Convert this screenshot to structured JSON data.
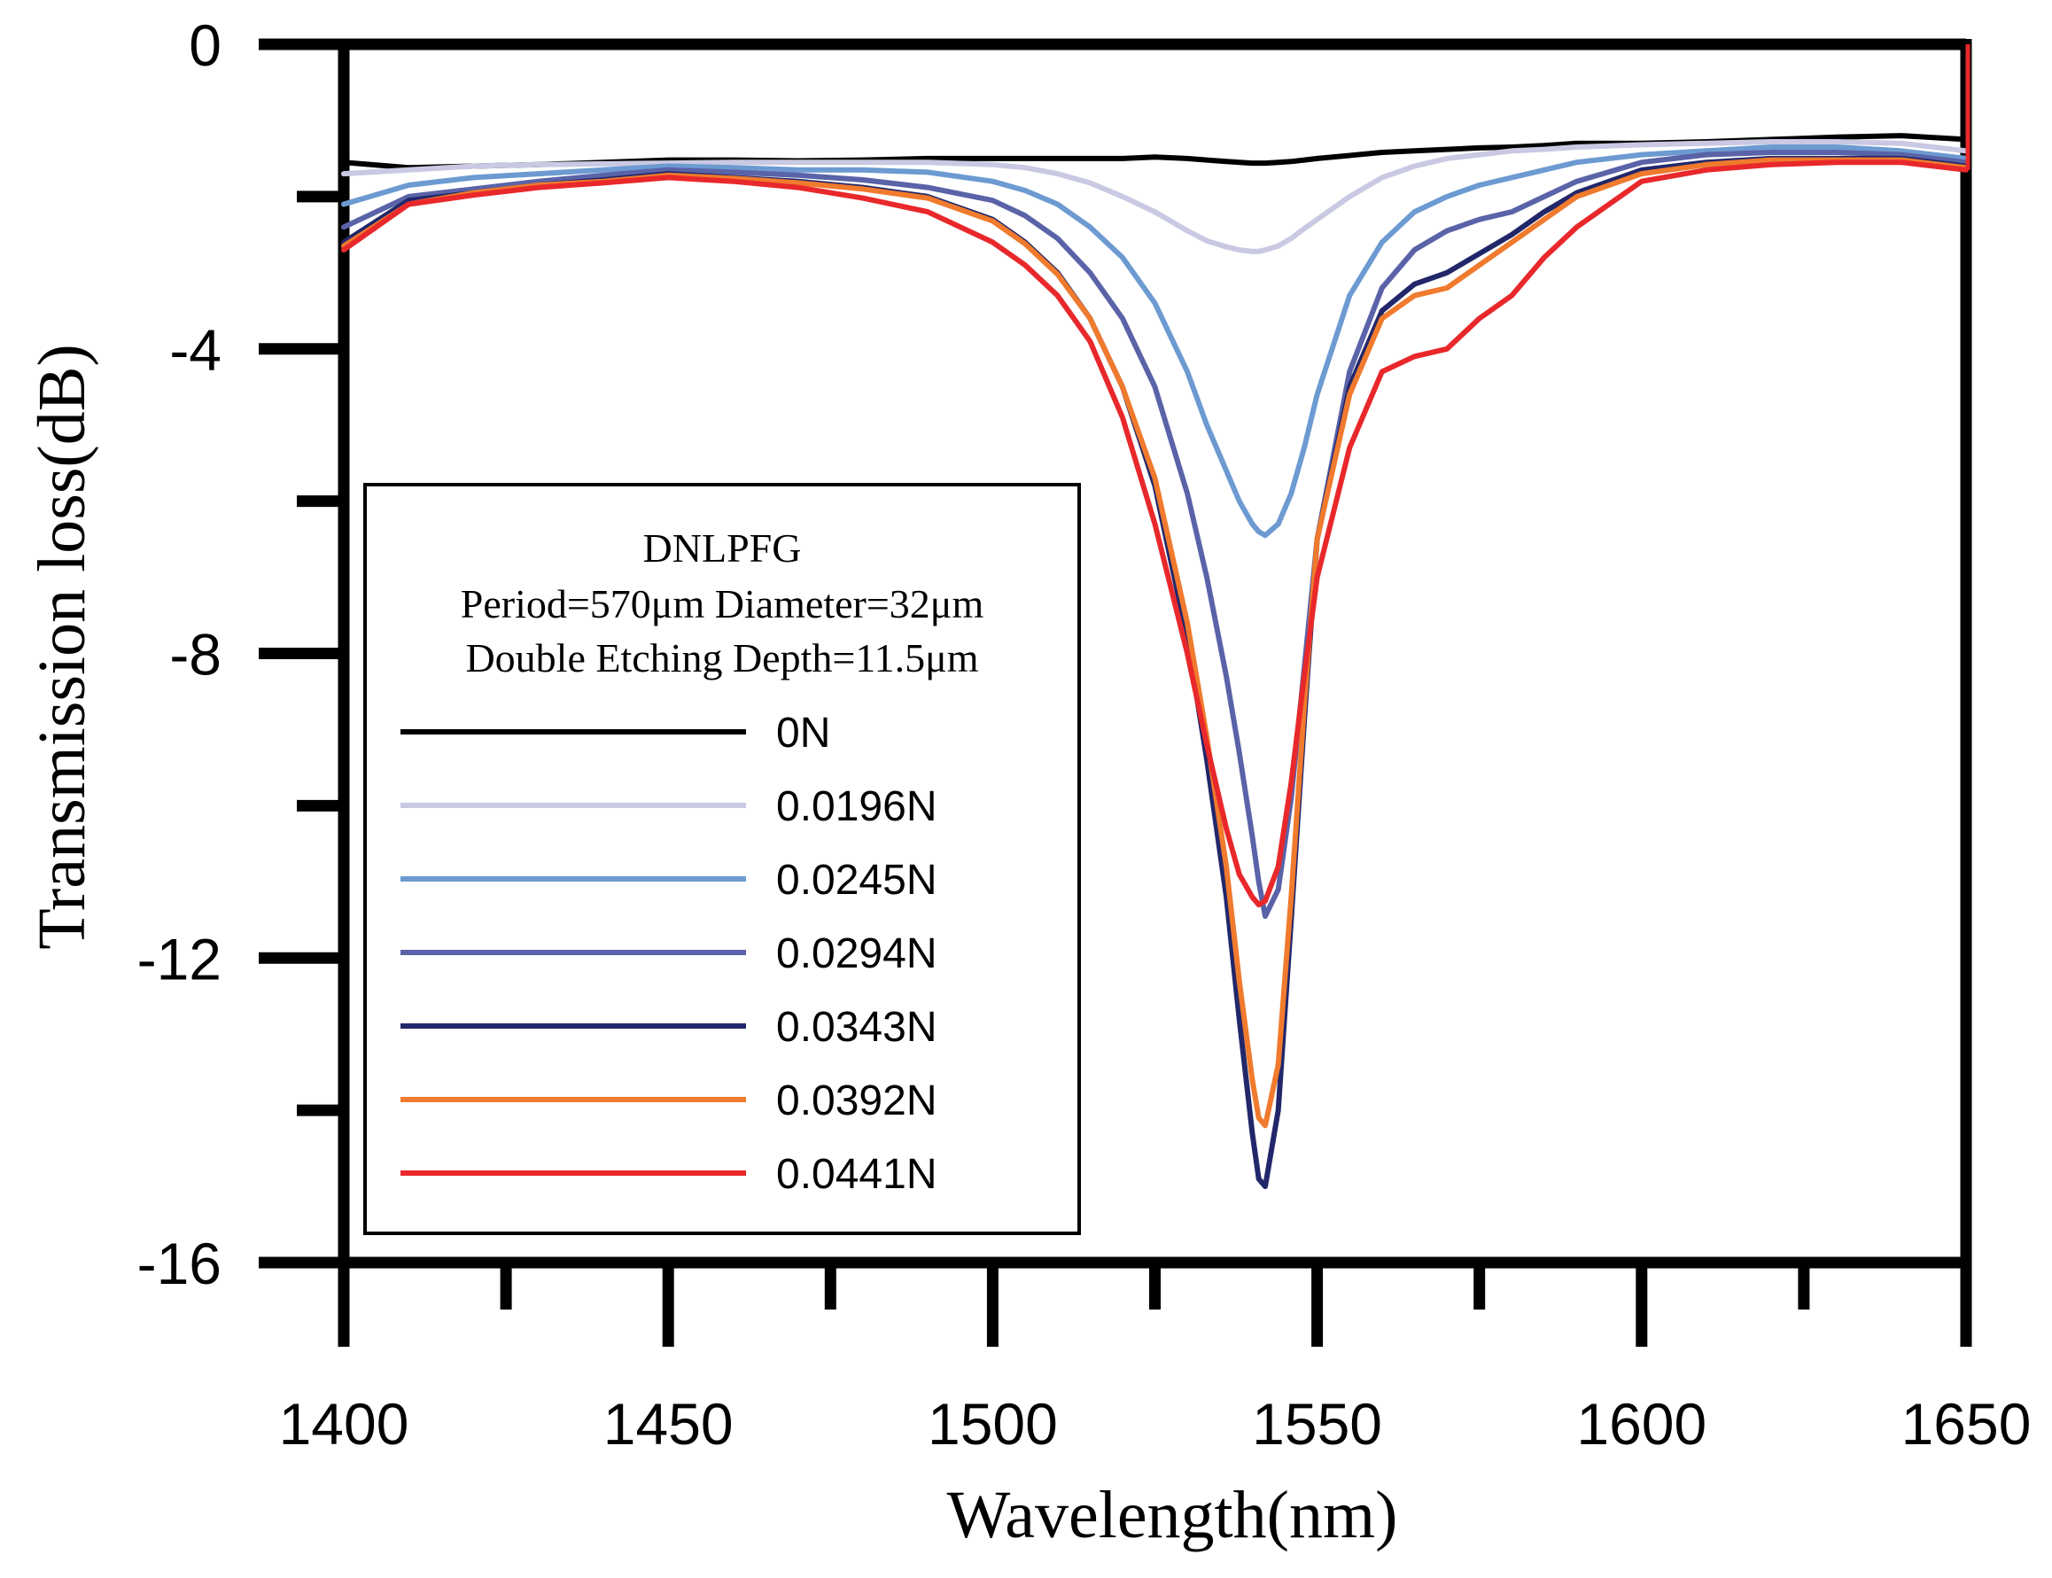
{
  "chart_data": {
    "type": "line",
    "xlabel": "Wavelength(nm)",
    "ylabel": "Transmission loss(dB)",
    "xlim": [
      1400,
      1650
    ],
    "ylim": [
      -16,
      0
    ],
    "xticks": [
      1400,
      1450,
      1500,
      1550,
      1600,
      1650
    ],
    "yticks": [
      0,
      -4,
      -8,
      -12,
      -16
    ],
    "grid": false,
    "legend": {
      "placement": "center-left",
      "title_lines": [
        "DNLPFG",
        "Period=570μm Diameter=32μm",
        "Double Etching Depth=11.5μm"
      ]
    },
    "x": [
      1400,
      1410,
      1420,
      1430,
      1440,
      1450,
      1460,
      1470,
      1480,
      1490,
      1500,
      1505,
      1510,
      1515,
      1520,
      1525,
      1530,
      1533,
      1536,
      1538,
      1540,
      1541,
      1542,
      1544,
      1546,
      1548,
      1550,
      1555,
      1560,
      1565,
      1570,
      1575,
      1580,
      1585,
      1590,
      1600,
      1610,
      1620,
      1630,
      1640,
      1650
    ],
    "series": [
      {
        "name": "0N",
        "color": "#000000",
        "values": [
          -1.55,
          -1.62,
          -1.6,
          -1.58,
          -1.55,
          -1.52,
          -1.52,
          -1.53,
          -1.52,
          -1.5,
          -1.5,
          -1.5,
          -1.5,
          -1.5,
          -1.5,
          -1.48,
          -1.5,
          -1.52,
          -1.54,
          -1.55,
          -1.56,
          -1.56,
          -1.56,
          -1.55,
          -1.54,
          -1.52,
          -1.5,
          -1.46,
          -1.42,
          -1.4,
          -1.38,
          -1.36,
          -1.35,
          -1.33,
          -1.3,
          -1.3,
          -1.28,
          -1.25,
          -1.22,
          -1.2,
          -1.25
        ]
      },
      {
        "name": "0.0196N",
        "color": "#c9c9e3",
        "values": [
          -1.7,
          -1.65,
          -1.6,
          -1.58,
          -1.57,
          -1.56,
          -1.55,
          -1.55,
          -1.55,
          -1.55,
          -1.58,
          -1.62,
          -1.7,
          -1.82,
          -2.0,
          -2.2,
          -2.45,
          -2.58,
          -2.66,
          -2.7,
          -2.72,
          -2.72,
          -2.7,
          -2.65,
          -2.55,
          -2.42,
          -2.3,
          -2.0,
          -1.75,
          -1.6,
          -1.5,
          -1.45,
          -1.4,
          -1.38,
          -1.35,
          -1.32,
          -1.3,
          -1.28,
          -1.28,
          -1.3,
          -1.4
        ]
      },
      {
        "name": "0.0245N",
        "color": "#6c9ad1",
        "values": [
          -2.1,
          -1.85,
          -1.75,
          -1.7,
          -1.65,
          -1.6,
          -1.62,
          -1.65,
          -1.65,
          -1.68,
          -1.8,
          -1.92,
          -2.1,
          -2.4,
          -2.8,
          -3.4,
          -4.3,
          -5.0,
          -5.6,
          -6.0,
          -6.3,
          -6.4,
          -6.45,
          -6.3,
          -5.9,
          -5.3,
          -4.6,
          -3.3,
          -2.6,
          -2.2,
          -2.0,
          -1.85,
          -1.75,
          -1.65,
          -1.55,
          -1.45,
          -1.4,
          -1.35,
          -1.35,
          -1.4,
          -1.5
        ]
      },
      {
        "name": "0.0294N",
        "color": "#5a63a8",
        "values": [
          -2.4,
          -2.0,
          -1.9,
          -1.8,
          -1.72,
          -1.65,
          -1.68,
          -1.72,
          -1.78,
          -1.88,
          -2.05,
          -2.25,
          -2.55,
          -3.0,
          -3.6,
          -4.5,
          -5.9,
          -7.0,
          -8.3,
          -9.3,
          -10.4,
          -11.0,
          -11.45,
          -11.1,
          -9.9,
          -8.2,
          -6.5,
          -4.3,
          -3.2,
          -2.7,
          -2.45,
          -2.3,
          -2.2,
          -2.0,
          -1.8,
          -1.55,
          -1.45,
          -1.42,
          -1.42,
          -1.45,
          -1.55
        ]
      },
      {
        "name": "0.0343N",
        "color": "#22276a",
        "values": [
          -2.6,
          -2.05,
          -1.95,
          -1.85,
          -1.78,
          -1.7,
          -1.75,
          -1.8,
          -1.88,
          -2.0,
          -2.3,
          -2.6,
          -3.0,
          -3.6,
          -4.5,
          -5.8,
          -7.8,
          -9.4,
          -11.2,
          -12.8,
          -14.3,
          -14.9,
          -15.0,
          -14.0,
          -11.5,
          -8.9,
          -6.5,
          -4.5,
          -3.5,
          -3.15,
          -3.0,
          -2.75,
          -2.5,
          -2.2,
          -1.95,
          -1.65,
          -1.55,
          -1.5,
          -1.5,
          -1.5,
          -1.6
        ]
      },
      {
        "name": "0.0392N",
        "color": "#f07a2d",
        "values": [
          -2.65,
          -2.1,
          -1.95,
          -1.85,
          -1.8,
          -1.72,
          -1.76,
          -1.82,
          -1.9,
          -2.02,
          -2.32,
          -2.62,
          -3.02,
          -3.6,
          -4.5,
          -5.7,
          -7.6,
          -9.1,
          -10.8,
          -12.3,
          -13.6,
          -14.1,
          -14.2,
          -13.4,
          -11.2,
          -8.7,
          -6.5,
          -4.6,
          -3.6,
          -3.3,
          -3.2,
          -2.9,
          -2.6,
          -2.3,
          -2.0,
          -1.7,
          -1.58,
          -1.52,
          -1.52,
          -1.52,
          -1.62
        ]
      },
      {
        "name": "0.0441N",
        "color": "#e8282b",
        "values": [
          -2.7,
          -2.1,
          -1.98,
          -1.88,
          -1.82,
          -1.75,
          -1.8,
          -1.88,
          -2.02,
          -2.2,
          -2.6,
          -2.9,
          -3.3,
          -3.9,
          -4.9,
          -6.3,
          -8.0,
          -9.2,
          -10.3,
          -10.9,
          -11.2,
          -11.3,
          -11.25,
          -10.8,
          -9.7,
          -8.3,
          -7.0,
          -5.3,
          -4.3,
          -4.1,
          -4.0,
          -3.6,
          -3.3,
          -2.8,
          -2.4,
          -1.8,
          -1.65,
          -1.58,
          -1.55,
          -1.55,
          -1.65
        ]
      }
    ]
  }
}
